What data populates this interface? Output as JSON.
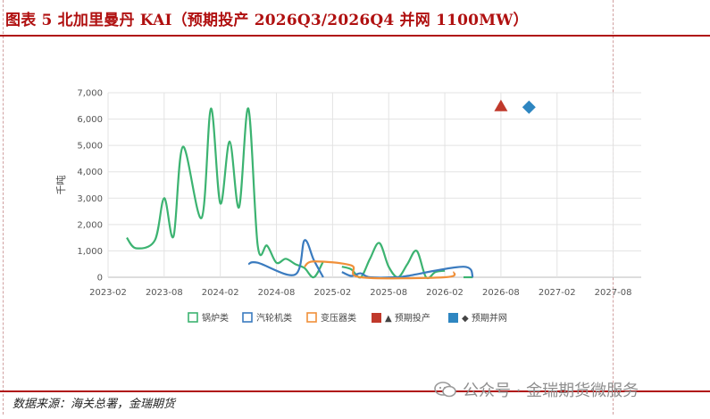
{
  "header": {
    "title": "图表 5 北加里曼丹 KAI（预期投产 2026Q3/2026Q4 并网 1100MW）"
  },
  "footer": {
    "source": "数据来源：海关总署，金瑞期货",
    "watermark": "公众号 · 金瑞期货微服务"
  },
  "chart_data": {
    "type": "line",
    "ylabel": "千吨",
    "ylim": [
      0,
      7000
    ],
    "yticks": [
      0,
      1000,
      2000,
      3000,
      4000,
      5000,
      6000,
      7000
    ],
    "ytick_labels": [
      "0",
      "1,000",
      "2,000",
      "3,000",
      "4,000",
      "5,000",
      "6,000",
      "7,000"
    ],
    "xlim": [
      "2023-02",
      "2027-11"
    ],
    "xticks": [
      "2023-02",
      "2023-08",
      "2024-02",
      "2024-08",
      "2025-02",
      "2025-08",
      "2026-02",
      "2026-08",
      "2027-02",
      "2027-08"
    ],
    "grid": true,
    "legend_position": "bottom",
    "series": [
      {
        "name": "锅炉类",
        "color": "#3cb371",
        "style": "line",
        "x": [
          "2023-04",
          "2023-05",
          "2023-07",
          "2023-08",
          "2023-09",
          "2023-10",
          "2023-12",
          "2024-01",
          "2024-02",
          "2024-03",
          "2024-04",
          "2024-05",
          "2024-06",
          "2024-07",
          "2024-08",
          "2024-09",
          "2024-10",
          "2024-11",
          "2024-12",
          "2025-01",
          "2025-02",
          "2025-03",
          "2025-04",
          "2025-05",
          "2025-06",
          "2025-07",
          "2025-08",
          "2025-09",
          "2025-10",
          "2025-11",
          "2025-12",
          "2026-01",
          "2026-02",
          "2026-03",
          "2026-04",
          "2026-05"
        ],
        "y": [
          1500,
          1100,
          1400,
          3000,
          1550,
          4950,
          2250,
          6400,
          2800,
          5150,
          2650,
          6400,
          1200,
          1200,
          550,
          700,
          500,
          350,
          0,
          600,
          null,
          400,
          300,
          0,
          700,
          1300,
          400,
          0,
          500,
          1000,
          0,
          200,
          250,
          null,
          0,
          0
        ]
      },
      {
        "name": "汽轮机类",
        "color": "#3a7bbf",
        "style": "line",
        "x": [
          "2024-05",
          "2024-06",
          "2024-10",
          "2024-11",
          "2024-12",
          "2025-01",
          "2025-02",
          "2025-03",
          "2025-04",
          "2025-05",
          "2025-06",
          "2025-09",
          "2025-10",
          "2026-04",
          "2026-05"
        ],
        "y": [
          500,
          550,
          100,
          1400,
          650,
          0,
          null,
          200,
          50,
          150,
          0,
          0,
          50,
          400,
          0
        ]
      },
      {
        "name": "变压器类",
        "color": "#f0903a",
        "style": "line",
        "x": [
          "2024-11",
          "2024-12",
          "2025-04",
          "2025-05",
          "2026-02",
          "2026-03"
        ],
        "y": [
          400,
          600,
          450,
          0,
          0,
          200
        ]
      },
      {
        "name": "▲ 预期投产",
        "color": "#c0392b",
        "style": "marker-triangle",
        "x": [
          "2026-08"
        ],
        "y": [
          6500
        ]
      },
      {
        "name": "◆ 预期并网",
        "color": "#2e86c1",
        "style": "marker-diamond",
        "x": [
          "2026-11"
        ],
        "y": [
          6450
        ]
      }
    ]
  }
}
